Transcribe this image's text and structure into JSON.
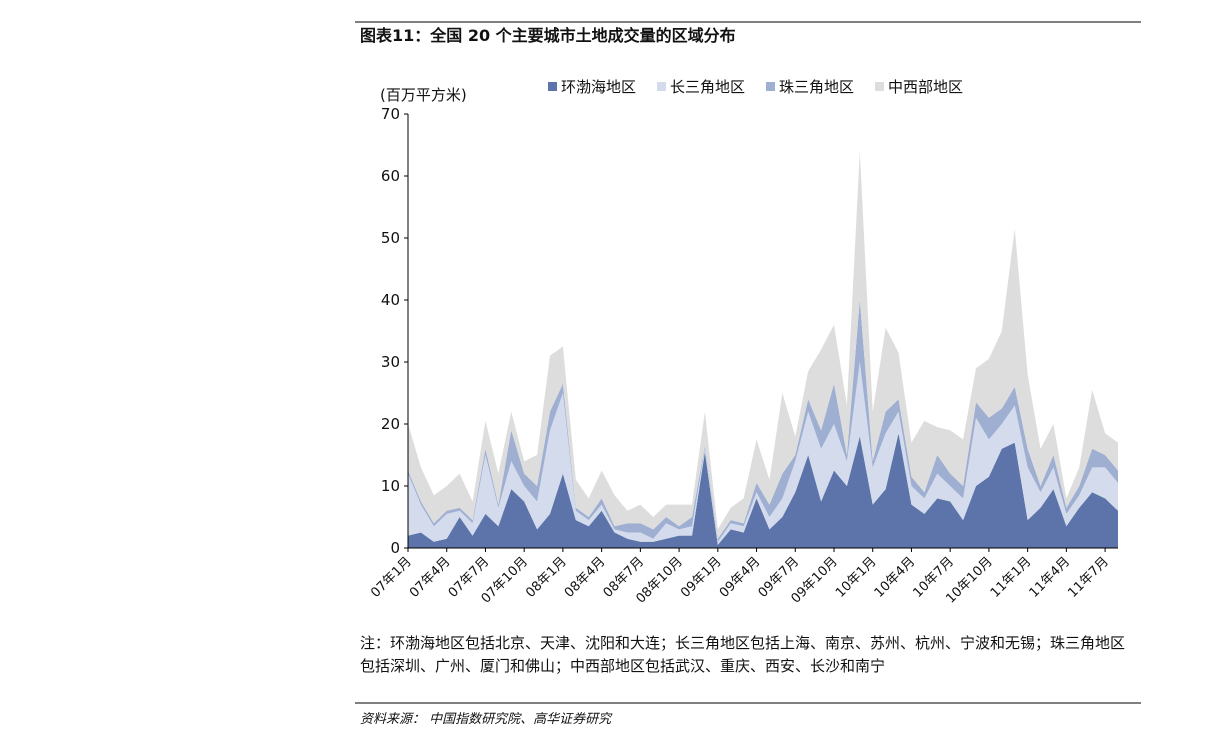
{
  "chart_data": {
    "type": "stacked_area",
    "title": "图表11：全国 20 个主要城市土地成交量的区域分布",
    "y_label": "(百万平方米)",
    "categories": [
      "07年1月",
      null,
      null,
      "07年4月",
      null,
      null,
      "07年7月",
      null,
      null,
      "07年10月",
      null,
      null,
      "08年1月",
      null,
      null,
      "08年4月",
      null,
      null,
      "08年7月",
      null,
      null,
      "08年10月",
      null,
      null,
      "09年1月",
      null,
      null,
      "09年4月",
      null,
      null,
      "09年7月",
      null,
      null,
      "09年10月",
      null,
      null,
      "10年1月",
      null,
      null,
      "10年4月",
      null,
      null,
      "10年7月",
      null,
      null,
      "10年10月",
      null,
      null,
      "11年1月",
      null,
      null,
      "11年4月",
      null,
      null,
      "11年7月",
      null
    ],
    "series": [
      {
        "name": "环渤海地区",
        "color": "#5c74a9",
        "values": [
          2,
          2.5,
          1,
          1.5,
          5,
          2,
          5.5,
          3.5,
          9.5,
          7.5,
          3,
          5.5,
          12,
          4.5,
          3.5,
          6,
          2.5,
          1.5,
          1,
          1,
          1.5,
          2,
          2,
          15.5,
          0.5,
          3,
          2.5,
          8,
          3,
          5,
          9,
          15,
          7.5,
          12.5,
          10,
          18,
          7,
          9.5,
          18.5,
          7,
          5.5,
          8,
          7.5,
          4.5,
          10,
          11.5,
          16,
          17,
          4.5,
          6.5,
          9.5,
          3.5,
          6.5,
          9,
          8,
          6
        ]
      },
      {
        "name": "长三角地区",
        "color": "#d3dbec",
        "values": [
          10,
          4.5,
          2.5,
          4,
          1,
          2,
          9.5,
          3,
          4.5,
          2.5,
          4.5,
          13.5,
          13,
          1.5,
          1,
          1,
          0.5,
          1,
          1.5,
          0.5,
          2.5,
          1,
          1.5,
          0.5,
          0.5,
          1,
          1,
          1,
          2,
          3,
          5,
          7,
          8.5,
          7.5,
          4,
          12,
          6,
          9,
          3.5,
          3,
          2.5,
          4,
          2.5,
          3.5,
          11,
          6,
          4,
          6,
          8.5,
          2.5,
          3.5,
          2,
          2,
          4,
          5,
          4.5
        ]
      },
      {
        "name": "珠三角地区",
        "color": "#9fafd2",
        "values": [
          0.5,
          0.5,
          0.5,
          0.5,
          0.5,
          0.5,
          1,
          0.5,
          5,
          2,
          2.5,
          3,
          1.5,
          0.5,
          0.5,
          1,
          0.5,
          1.5,
          1.5,
          1.5,
          1,
          0.5,
          1.5,
          0.5,
          0.5,
          0.5,
          0.5,
          1.5,
          2,
          4,
          1,
          2,
          3,
          6.5,
          1,
          10,
          1,
          3.5,
          2,
          1.5,
          1,
          3,
          2,
          2,
          2.5,
          3.5,
          2.5,
          3,
          3,
          1,
          2,
          1,
          1.5,
          3,
          2,
          2
        ]
      },
      {
        "name": "中西部地区",
        "color": "#dddddd",
        "values": [
          7.5,
          5.5,
          4.5,
          4,
          5.5,
          3,
          4.5,
          5,
          3,
          2,
          5,
          9,
          6,
          4.5,
          3,
          4.5,
          5,
          2,
          3,
          2,
          2,
          3.5,
          2,
          5.5,
          1.5,
          2,
          4,
          7,
          4,
          13,
          3,
          4.5,
          13,
          9.5,
          8,
          24,
          8,
          13.5,
          7.5,
          5.5,
          11.5,
          4.5,
          7,
          7.5,
          5.5,
          9.5,
          12.5,
          25.5,
          12,
          6,
          5,
          1.5,
          3,
          9.5,
          3.5,
          4.5
        ]
      }
    ],
    "ylim": [
      0,
      70
    ],
    "yticks": [
      0,
      10,
      20,
      30,
      40,
      50,
      60,
      70
    ]
  },
  "note": "注：环渤海地区包括北京、天津、沈阳和大连；长三角地区包括上海、南京、苏州、杭州、宁波和无锡；珠三角地区包括深圳、广州、厦门和佛山；中西部地区包括武汉、重庆、西安、长沙和南宁",
  "source": "资料来源： 中国指数研究院、高华证券研究"
}
